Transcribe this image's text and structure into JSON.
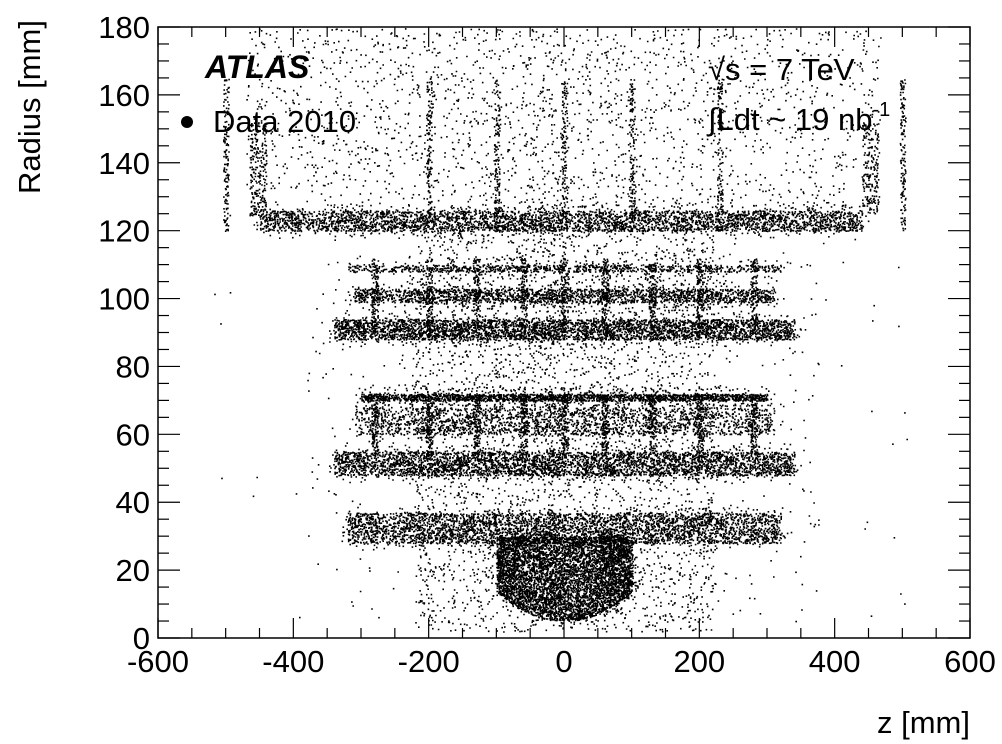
{
  "chart_data": {
    "type": "scatter",
    "xlabel": "z [mm]",
    "ylabel": "Radius [mm]",
    "xlim": [
      -600,
      600
    ],
    "ylim": [
      0,
      180
    ],
    "x_ticks": [
      -600,
      -400,
      -200,
      0,
      200,
      400,
      600
    ],
    "y_ticks": [
      0,
      20,
      40,
      60,
      80,
      100,
      120,
      140,
      160,
      180
    ],
    "grid": false,
    "legend": {
      "position": "top-left",
      "entries": [
        {
          "name": "Data 2010",
          "marker": "dot"
        }
      ]
    },
    "annotations": {
      "experiment": "ATLAS",
      "energy": "√s = 7 TeV",
      "luminosity_prefix": "∫Ldt ~ 19 nb",
      "luminosity_exp": "-1"
    },
    "marker_color": "#000000",
    "series": [
      {
        "name": "Data 2010",
        "description": "density bands of reconstructed secondary vertices (hadronic interactions)",
        "bands": [
          {
            "zmin": -100,
            "zmax": 100,
            "rmin": 5,
            "rmax": 30,
            "density": "dense",
            "shape": "dome"
          },
          {
            "zmin": -320,
            "zmax": 320,
            "rmin": 28,
            "rmax": 37,
            "density": "dense"
          },
          {
            "zmin": -340,
            "zmax": 340,
            "rmin": 48,
            "rmax": 55,
            "density": "dense"
          },
          {
            "zmin": -310,
            "zmax": 310,
            "rmin": 60,
            "rmax": 68,
            "density": "medium"
          },
          {
            "zmin": -300,
            "zmax": 300,
            "rmin": 70,
            "rmax": 72,
            "density": "medium"
          },
          {
            "zmin": -340,
            "zmax": 340,
            "rmin": 88,
            "rmax": 94,
            "density": "dense"
          },
          {
            "zmin": -310,
            "zmax": 310,
            "rmin": 99,
            "rmax": 103,
            "density": "medium"
          },
          {
            "zmin": -320,
            "zmax": 320,
            "rmin": 108,
            "rmax": 110,
            "density": "sparse"
          },
          {
            "zmin": -450,
            "zmax": 440,
            "rmin": 120,
            "rmax": 126,
            "density": "dense"
          }
        ]
      }
    ]
  }
}
